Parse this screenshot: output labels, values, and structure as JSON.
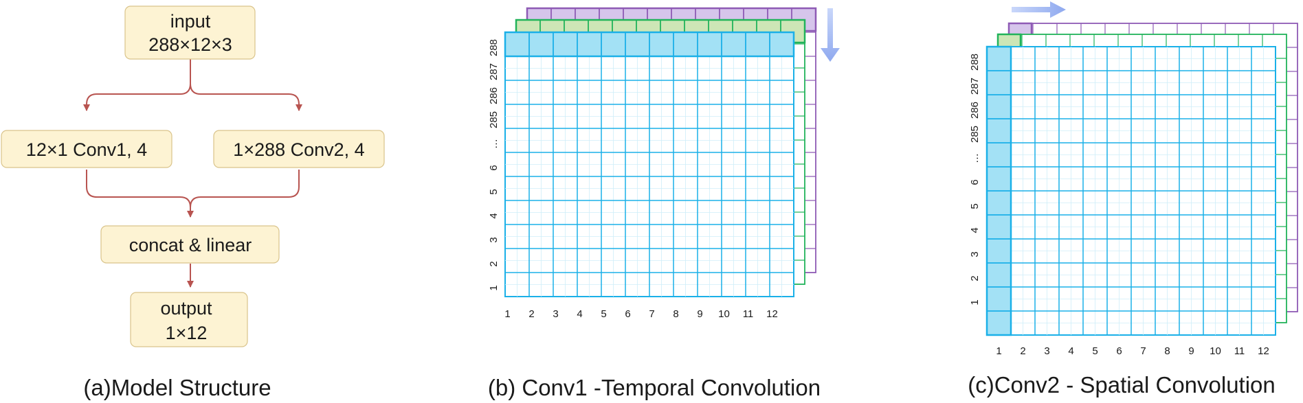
{
  "panel_a": {
    "nodes": {
      "input": [
        "input",
        "288×12×3"
      ],
      "conv1": [
        "12×1 Conv1, 4"
      ],
      "conv2": [
        "1×288 Conv2, 4"
      ],
      "concat": [
        "concat & linear"
      ],
      "output": [
        "output",
        "1×12"
      ]
    },
    "caption": "(a)Model Structure"
  },
  "panel_b": {
    "caption": "(b) Conv1 -Temporal Convolution",
    "x_ticks": [
      "1",
      "2",
      "3",
      "4",
      "5",
      "6",
      "7",
      "8",
      "9",
      "10",
      "11",
      "12"
    ],
    "y_ticks": [
      "288",
      "287",
      "286",
      "285",
      "…",
      "6",
      "5",
      "4",
      "3",
      "2",
      "1"
    ]
  },
  "panel_c": {
    "caption": "(c)Conv2 - Spatial Convolution",
    "x_ticks": [
      "1",
      "2",
      "3",
      "4",
      "5",
      "6",
      "7",
      "8",
      "9",
      "10",
      "11",
      "12"
    ],
    "y_ticks": [
      "288",
      "287",
      "286",
      "285",
      "…",
      "6",
      "5",
      "4",
      "3",
      "2",
      "1"
    ]
  },
  "colors": {
    "node_fill": "#fdf3d3",
    "node_border": "#d9c38a",
    "edge": "#b85450",
    "layer_blue": "#1ab0e8",
    "layer_blue_fill": "#a3e1f5",
    "layer_green": "#21b35a",
    "layer_green_fill": "#cde6b6",
    "layer_purple": "#8e5ab5",
    "layer_purple_fill": "#d6c5eb",
    "arrow": "#9fb6f2"
  }
}
